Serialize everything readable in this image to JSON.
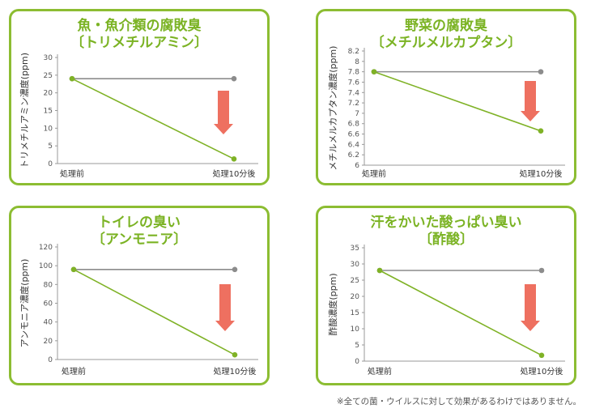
{
  "colors": {
    "border": "#8cbd32",
    "title": "#7bb324",
    "baseline": "#8c8c8c",
    "treated": "#7fb226",
    "arrow": "#ee7060"
  },
  "chart_data": [
    {
      "type": "line",
      "title": "魚・魚介類の腐敗臭",
      "subtitle": "〔トリメチルアミン〕",
      "ylabel": "トリメチルアミン濃度(ppm)",
      "categories": [
        "処理前",
        "処理10分後"
      ],
      "yticks": [
        "0",
        "5",
        "10",
        "15",
        "20",
        "25",
        "30"
      ],
      "ylim": [
        0,
        30
      ],
      "series": [
        {
          "values": [
            24,
            24
          ]
        },
        {
          "values": [
            24,
            1.3
          ]
        }
      ]
    },
    {
      "type": "line",
      "title": "野菜の腐敗臭",
      "subtitle": "〔メチルメルカプタン〕",
      "ylabel": "メチルメルカプタン濃度(ppm)",
      "categories": [
        "処理前",
        "処理10分後"
      ],
      "yticks": [
        "6",
        "6.2",
        "6.4",
        "6.6",
        "6.8",
        "7",
        "7.2",
        "7.4",
        "7.6",
        "7.8",
        "8",
        "8.2"
      ],
      "ylim": [
        6,
        8.2
      ],
      "series": [
        {
          "values": [
            7.8,
            7.8
          ]
        },
        {
          "values": [
            7.8,
            6.66
          ]
        }
      ]
    },
    {
      "type": "line",
      "title": "トイレの臭い",
      "subtitle": "〔アンモニア〕",
      "ylabel": "アンモニア濃度(ppm)",
      "categories": [
        "処理前",
        "処理10分後"
      ],
      "yticks": [
        "0",
        "20",
        "40",
        "60",
        "80",
        "100",
        "120"
      ],
      "ylim": [
        0,
        120
      ],
      "series": [
        {
          "values": [
            96,
            96
          ]
        },
        {
          "values": [
            96,
            5
          ]
        }
      ]
    },
    {
      "type": "line",
      "title": "汗をかいた酸っぱい臭い",
      "subtitle": "〔酢酸〕",
      "ylabel": "酢酸濃度(ppm)",
      "categories": [
        "処理前",
        "処理10分後"
      ],
      "yticks": [
        "0",
        "5",
        "10",
        "15",
        "20",
        "25",
        "30",
        "35"
      ],
      "ylim": [
        0,
        35
      ],
      "series": [
        {
          "values": [
            28,
            28
          ]
        },
        {
          "values": [
            28,
            1.8
          ]
        }
      ]
    }
  ],
  "footnote": "※全ての菌・ウイルスに対して効果があるわけではありません。"
}
